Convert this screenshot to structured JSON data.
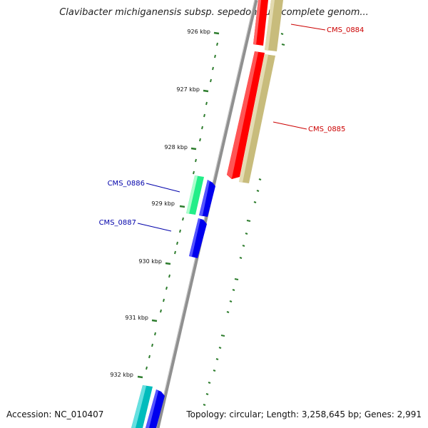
{
  "title": "Clavibacter michiganensis subsp. sepedonicus, complete genom...",
  "footer": {
    "accession": "Accession: NC_010407",
    "summary": "Topology: circular; Length: 3,258,645 bp; Genes: 2,991"
  },
  "colors": {
    "backbone": "#808080",
    "tick": "#2e7d2e",
    "forward_label": "#cc0000",
    "reverse_label": "#0000aa"
  },
  "ticks": [
    "926 kbp",
    "927 kbp",
    "928 kbp",
    "929 kbp",
    "930 kbp",
    "931 kbp",
    "932 kbp"
  ],
  "genes": [
    {
      "name": "CMS_0884",
      "label_color": "#cc0000",
      "strand": "forward"
    },
    {
      "name": "CMS_0885",
      "label_color": "#cc0000",
      "strand": "forward"
    },
    {
      "name": "CMS_0886",
      "label_color": "#0000aa",
      "strand": "reverse"
    },
    {
      "name": "CMS_0887",
      "label_color": "#0000aa",
      "strand": "reverse"
    }
  ]
}
